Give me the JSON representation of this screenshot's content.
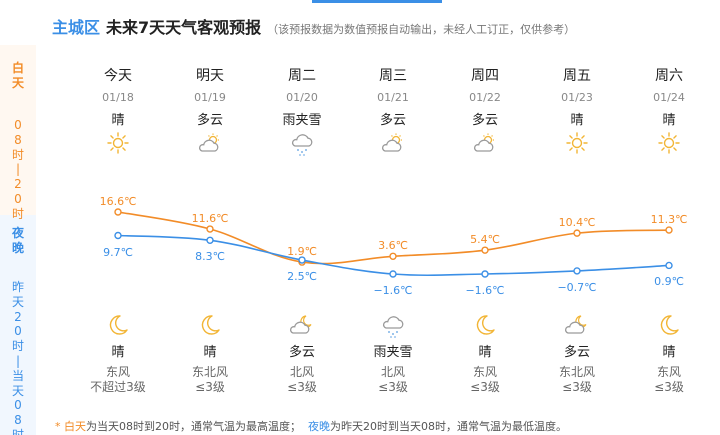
{
  "header": {
    "district": "主城区",
    "title": "未来7天天气客观预报",
    "note": "（该预报数据为数值预报自动输出，未经人工订正，仅供参考）"
  },
  "rail": {
    "day_label": "白天",
    "day_range": "08时|20时",
    "night_label": "夜晚",
    "night_range": "昨天20时|当天08时"
  },
  "colors": {
    "high": "#f28c28",
    "low": "#3b8fe6",
    "icon_day": "#f2b535",
    "icon_cloud": "#9a9a9a",
    "icon_moon": "#f2b535"
  },
  "chart_data": {
    "type": "line",
    "x": [
      "今天",
      "明天",
      "周二",
      "周三",
      "周四",
      "周五",
      "周六"
    ],
    "series": [
      {
        "name": "白天",
        "values": [
          16.6,
          11.6,
          1.9,
          3.6,
          5.4,
          10.4,
          11.3
        ]
      },
      {
        "name": "夜晚",
        "values": [
          9.7,
          8.3,
          2.5,
          -1.6,
          -1.6,
          -0.7,
          0.9
        ]
      }
    ],
    "unit": "℃"
  },
  "days": [
    {
      "name": "今天",
      "date": "01/18",
      "day_weather": "晴",
      "day_icon": "sun-icon",
      "high": "16.6℃",
      "low": "9.7℃",
      "night_icon": "moon-icon",
      "night_weather": "晴",
      "wind_dir": "东风",
      "wind_level": "不超过3级"
    },
    {
      "name": "明天",
      "date": "01/19",
      "day_weather": "多云",
      "day_icon": "partly-cloudy-icon",
      "high": "11.6℃",
      "low": "8.3℃",
      "night_icon": "moon-icon",
      "night_weather": "晴",
      "wind_dir": "东北风",
      "wind_level": "≤3级"
    },
    {
      "name": "周二",
      "date": "01/20",
      "day_weather": "雨夹雪",
      "day_icon": "sleet-icon",
      "high": "1.9℃",
      "low": "2.5℃",
      "night_icon": "cloudy-night-icon",
      "night_weather": "多云",
      "wind_dir": "北风",
      "wind_level": "≤3级"
    },
    {
      "name": "周三",
      "date": "01/21",
      "day_weather": "多云",
      "day_icon": "partly-cloudy-icon",
      "high": "3.6℃",
      "low": "−1.6℃",
      "night_icon": "sleet-icon",
      "night_weather": "雨夹雪",
      "wind_dir": "北风",
      "wind_level": "≤3级"
    },
    {
      "name": "周四",
      "date": "01/22",
      "day_weather": "多云",
      "day_icon": "partly-cloudy-icon",
      "high": "5.4℃",
      "low": "−1.6℃",
      "night_icon": "moon-icon",
      "night_weather": "晴",
      "wind_dir": "东风",
      "wind_level": "≤3级"
    },
    {
      "name": "周五",
      "date": "01/23",
      "day_weather": "晴",
      "day_icon": "sun-icon",
      "high": "10.4℃",
      "low": "−0.7℃",
      "night_icon": "cloudy-night-icon",
      "night_weather": "多云",
      "wind_dir": "东北风",
      "wind_level": "≤3级"
    },
    {
      "name": "周六",
      "date": "01/24",
      "day_weather": "晴",
      "day_icon": "sun-icon",
      "high": "11.3℃",
      "low": "0.9℃",
      "night_icon": "moon-icon",
      "night_weather": "晴",
      "wind_dir": "东风",
      "wind_level": "≤3级"
    }
  ],
  "footer": {
    "star": "* ",
    "day_term": "白天",
    "day_text": "为当天08时到20时，通常气温为最高温度；",
    "night_term": "夜晚",
    "night_text": "为昨天20时到当天08时，通常气温为最低温度。"
  }
}
